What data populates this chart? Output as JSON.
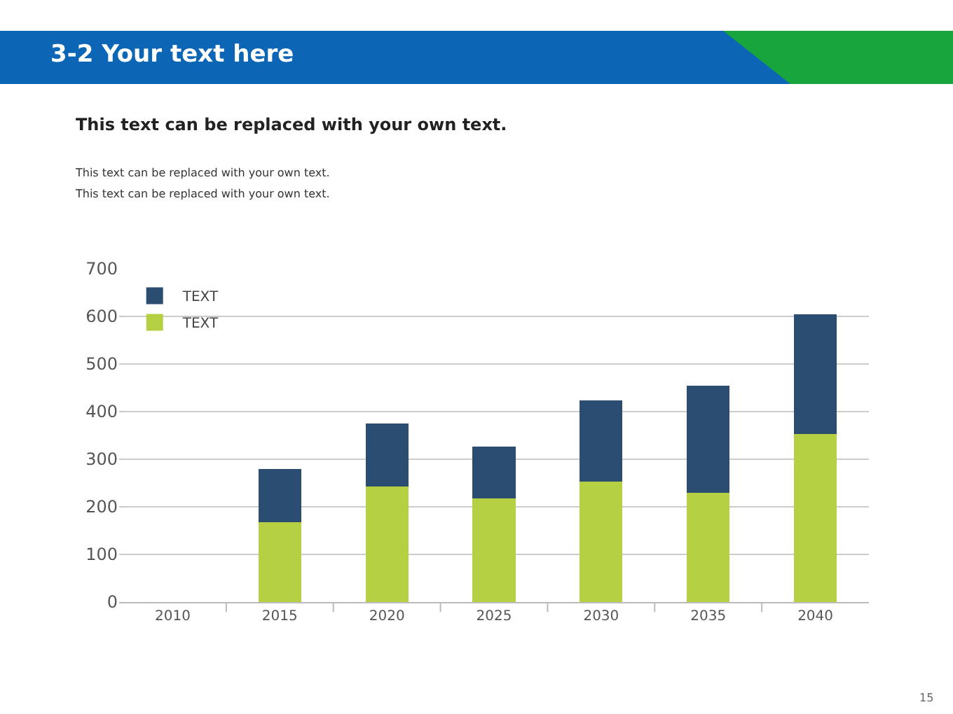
{
  "chart_data": {
    "type": "bar",
    "title": "3-2 Your text here",
    "subtitle": "This text can be replaced with your own text.",
    "annotations": [
      "This text can be replaced with your own text.",
      "This text can be replaced with your own text.",
      "15"
    ],
    "categories": [
      "2010",
      "2015",
      "2020",
      "2025",
      "2030",
      "2035",
      "2040"
    ],
    "stacked": true,
    "series": [
      {
        "name": "TEXT",
        "color": "#b5d043",
        "values": [
          null,
          168,
          243,
          218,
          253,
          230,
          353
        ]
      },
      {
        "name": "TEXT",
        "color": "#2b4d72",
        "values": [
          null,
          112,
          132,
          109,
          170,
          225,
          252
        ]
      }
    ],
    "ylim": [
      0,
      700
    ],
    "yticks": [
      0,
      100,
      200,
      300,
      400,
      500,
      600,
      700
    ],
    "grid": "y",
    "legend": "top left"
  }
}
